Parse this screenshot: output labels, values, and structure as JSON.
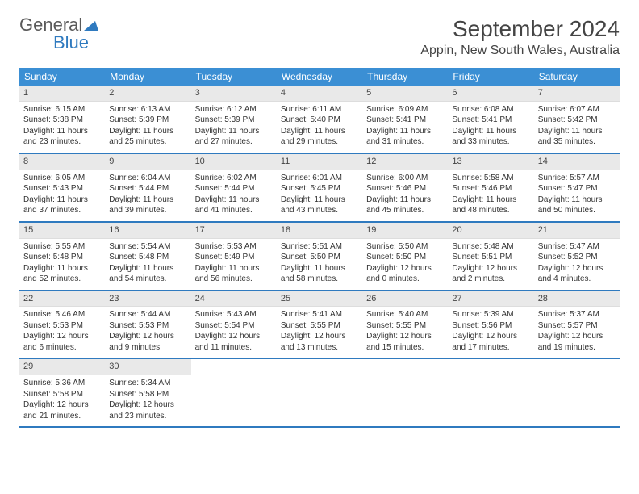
{
  "brand": {
    "name_gray": "General",
    "name_blue": "Blue"
  },
  "title": "September 2024",
  "location": "Appin, New South Wales, Australia",
  "colors": {
    "header_bg": "#3b8fd4",
    "header_text": "#ffffff",
    "week_divider": "#2f7abf",
    "daynum_bg": "#e9e9e9",
    "body_text": "#333333",
    "logo_gray": "#5a5a5a",
    "logo_blue": "#2f7abf",
    "background": "#ffffff"
  },
  "typography": {
    "title_fontsize": 28,
    "location_fontsize": 16,
    "dayheader_fontsize": 12,
    "daynum_fontsize": 11,
    "cell_fontsize": 10
  },
  "day_names": [
    "Sunday",
    "Monday",
    "Tuesday",
    "Wednesday",
    "Thursday",
    "Friday",
    "Saturday"
  ],
  "weeks": [
    [
      {
        "d": "1",
        "sr": "Sunrise: 6:15 AM",
        "ss": "Sunset: 5:38 PM",
        "dl": "Daylight: 11 hours and 23 minutes."
      },
      {
        "d": "2",
        "sr": "Sunrise: 6:13 AM",
        "ss": "Sunset: 5:39 PM",
        "dl": "Daylight: 11 hours and 25 minutes."
      },
      {
        "d": "3",
        "sr": "Sunrise: 6:12 AM",
        "ss": "Sunset: 5:39 PM",
        "dl": "Daylight: 11 hours and 27 minutes."
      },
      {
        "d": "4",
        "sr": "Sunrise: 6:11 AM",
        "ss": "Sunset: 5:40 PM",
        "dl": "Daylight: 11 hours and 29 minutes."
      },
      {
        "d": "5",
        "sr": "Sunrise: 6:09 AM",
        "ss": "Sunset: 5:41 PM",
        "dl": "Daylight: 11 hours and 31 minutes."
      },
      {
        "d": "6",
        "sr": "Sunrise: 6:08 AM",
        "ss": "Sunset: 5:41 PM",
        "dl": "Daylight: 11 hours and 33 minutes."
      },
      {
        "d": "7",
        "sr": "Sunrise: 6:07 AM",
        "ss": "Sunset: 5:42 PM",
        "dl": "Daylight: 11 hours and 35 minutes."
      }
    ],
    [
      {
        "d": "8",
        "sr": "Sunrise: 6:05 AM",
        "ss": "Sunset: 5:43 PM",
        "dl": "Daylight: 11 hours and 37 minutes."
      },
      {
        "d": "9",
        "sr": "Sunrise: 6:04 AM",
        "ss": "Sunset: 5:44 PM",
        "dl": "Daylight: 11 hours and 39 minutes."
      },
      {
        "d": "10",
        "sr": "Sunrise: 6:02 AM",
        "ss": "Sunset: 5:44 PM",
        "dl": "Daylight: 11 hours and 41 minutes."
      },
      {
        "d": "11",
        "sr": "Sunrise: 6:01 AM",
        "ss": "Sunset: 5:45 PM",
        "dl": "Daylight: 11 hours and 43 minutes."
      },
      {
        "d": "12",
        "sr": "Sunrise: 6:00 AM",
        "ss": "Sunset: 5:46 PM",
        "dl": "Daylight: 11 hours and 45 minutes."
      },
      {
        "d": "13",
        "sr": "Sunrise: 5:58 AM",
        "ss": "Sunset: 5:46 PM",
        "dl": "Daylight: 11 hours and 48 minutes."
      },
      {
        "d": "14",
        "sr": "Sunrise: 5:57 AM",
        "ss": "Sunset: 5:47 PM",
        "dl": "Daylight: 11 hours and 50 minutes."
      }
    ],
    [
      {
        "d": "15",
        "sr": "Sunrise: 5:55 AM",
        "ss": "Sunset: 5:48 PM",
        "dl": "Daylight: 11 hours and 52 minutes."
      },
      {
        "d": "16",
        "sr": "Sunrise: 5:54 AM",
        "ss": "Sunset: 5:48 PM",
        "dl": "Daylight: 11 hours and 54 minutes."
      },
      {
        "d": "17",
        "sr": "Sunrise: 5:53 AM",
        "ss": "Sunset: 5:49 PM",
        "dl": "Daylight: 11 hours and 56 minutes."
      },
      {
        "d": "18",
        "sr": "Sunrise: 5:51 AM",
        "ss": "Sunset: 5:50 PM",
        "dl": "Daylight: 11 hours and 58 minutes."
      },
      {
        "d": "19",
        "sr": "Sunrise: 5:50 AM",
        "ss": "Sunset: 5:50 PM",
        "dl": "Daylight: 12 hours and 0 minutes."
      },
      {
        "d": "20",
        "sr": "Sunrise: 5:48 AM",
        "ss": "Sunset: 5:51 PM",
        "dl": "Daylight: 12 hours and 2 minutes."
      },
      {
        "d": "21",
        "sr": "Sunrise: 5:47 AM",
        "ss": "Sunset: 5:52 PM",
        "dl": "Daylight: 12 hours and 4 minutes."
      }
    ],
    [
      {
        "d": "22",
        "sr": "Sunrise: 5:46 AM",
        "ss": "Sunset: 5:53 PM",
        "dl": "Daylight: 12 hours and 6 minutes."
      },
      {
        "d": "23",
        "sr": "Sunrise: 5:44 AM",
        "ss": "Sunset: 5:53 PM",
        "dl": "Daylight: 12 hours and 9 minutes."
      },
      {
        "d": "24",
        "sr": "Sunrise: 5:43 AM",
        "ss": "Sunset: 5:54 PM",
        "dl": "Daylight: 12 hours and 11 minutes."
      },
      {
        "d": "25",
        "sr": "Sunrise: 5:41 AM",
        "ss": "Sunset: 5:55 PM",
        "dl": "Daylight: 12 hours and 13 minutes."
      },
      {
        "d": "26",
        "sr": "Sunrise: 5:40 AM",
        "ss": "Sunset: 5:55 PM",
        "dl": "Daylight: 12 hours and 15 minutes."
      },
      {
        "d": "27",
        "sr": "Sunrise: 5:39 AM",
        "ss": "Sunset: 5:56 PM",
        "dl": "Daylight: 12 hours and 17 minutes."
      },
      {
        "d": "28",
        "sr": "Sunrise: 5:37 AM",
        "ss": "Sunset: 5:57 PM",
        "dl": "Daylight: 12 hours and 19 minutes."
      }
    ],
    [
      {
        "d": "29",
        "sr": "Sunrise: 5:36 AM",
        "ss": "Sunset: 5:58 PM",
        "dl": "Daylight: 12 hours and 21 minutes."
      },
      {
        "d": "30",
        "sr": "Sunrise: 5:34 AM",
        "ss": "Sunset: 5:58 PM",
        "dl": "Daylight: 12 hours and 23 minutes."
      },
      null,
      null,
      null,
      null,
      null
    ]
  ]
}
